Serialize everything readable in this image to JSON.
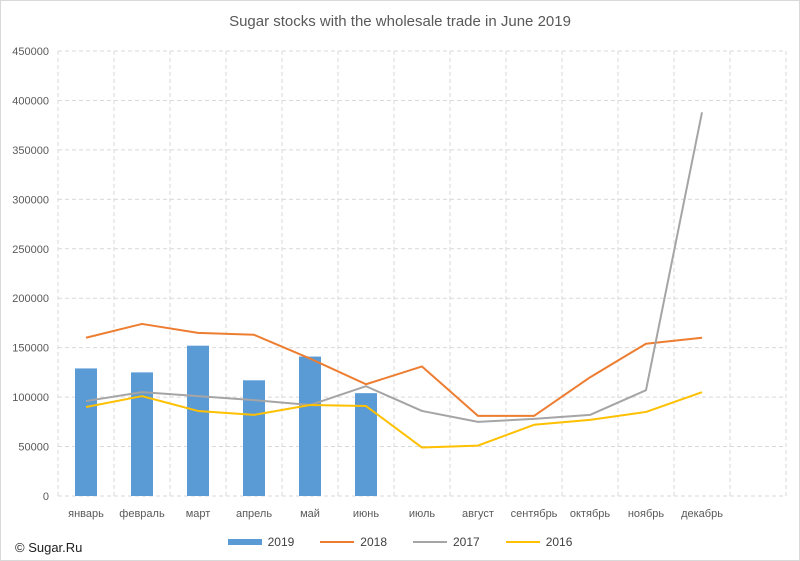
{
  "chart_data": {
    "type": "bar+line",
    "title": "Sugar stocks with the wholesale trade in June 2019",
    "categories": [
      "январь",
      "февраль",
      "март",
      "апрель",
      "май",
      "июнь",
      "июль",
      "август",
      "сентябрь",
      "октябрь",
      "ноябрь",
      "декабрь"
    ],
    "ylim": [
      0,
      450000
    ],
    "yticks": [
      0,
      50000,
      100000,
      150000,
      200000,
      250000,
      300000,
      350000,
      400000,
      450000
    ],
    "grid": "vertical and horizontal",
    "legend_position": "bottom",
    "series": [
      {
        "name": "2019",
        "kind": "bar",
        "color": "#5b9bd5",
        "values": [
          129000,
          125000,
          152000,
          117000,
          141000,
          104000,
          null,
          null,
          null,
          null,
          null,
          null
        ]
      },
      {
        "name": "2018",
        "kind": "line",
        "color": "#ed7d31",
        "values": [
          160000,
          174000,
          165000,
          163000,
          139000,
          113000,
          131000,
          81000,
          81000,
          120000,
          154000,
          160000
        ]
      },
      {
        "name": "2017",
        "kind": "line",
        "color": "#a5a5a5",
        "values": [
          96000,
          105000,
          101000,
          97000,
          92000,
          111000,
          86000,
          75000,
          78000,
          82000,
          107000,
          388000
        ]
      },
      {
        "name": "2016",
        "kind": "line",
        "color": "#ffc000",
        "values": [
          90000,
          101000,
          86000,
          82000,
          92000,
          91000,
          49000,
          51000,
          72000,
          77000,
          85000,
          105000
        ]
      }
    ]
  },
  "footer": {
    "copyright": "© Sugar.Ru"
  }
}
